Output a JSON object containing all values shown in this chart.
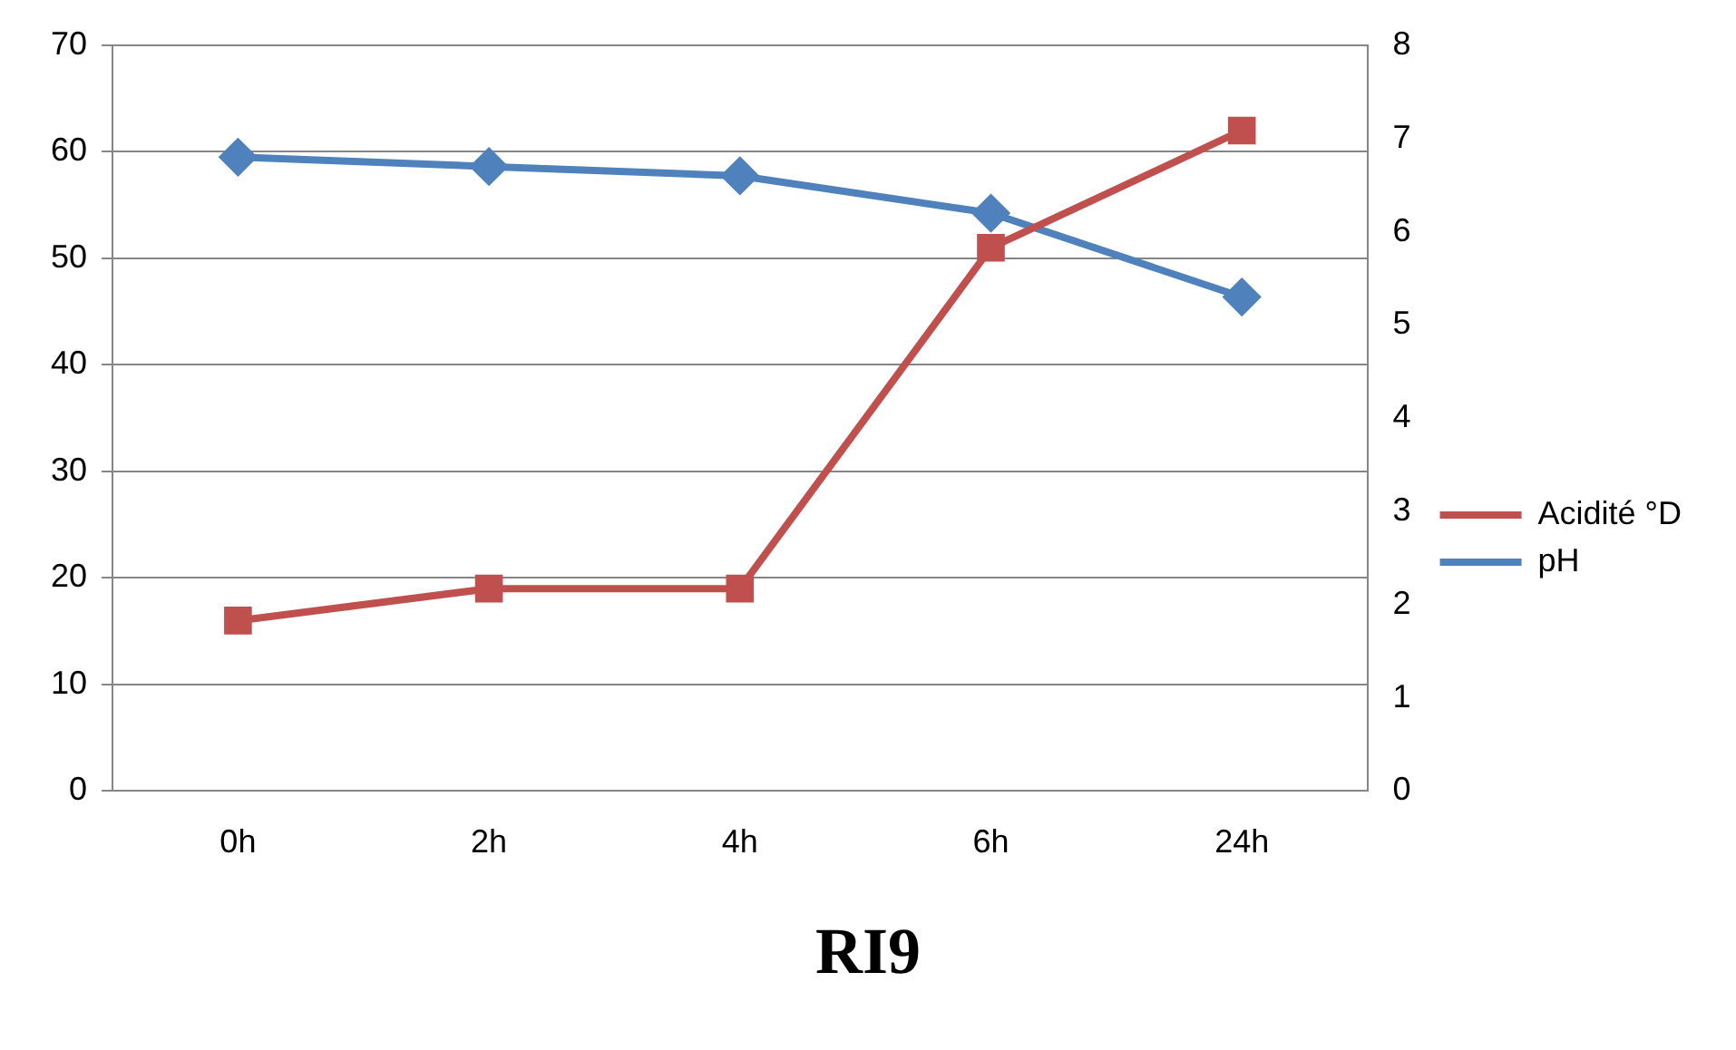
{
  "chart_data": {
    "type": "line",
    "title": "RI9",
    "categories": [
      "0h",
      "2h",
      "4h",
      "6h",
      "24h"
    ],
    "series": [
      {
        "name": "Acidité °D",
        "color": "#c0504d",
        "marker": "square",
        "values": [
          16,
          19,
          19,
          51,
          62
        ]
      },
      {
        "name": "pH",
        "color": "#4f81bd",
        "marker": "diamond",
        "axis": "y2",
        "values": [
          6.8,
          6.7,
          6.6,
          6.2,
          5.3
        ]
      }
    ],
    "ylim": [
      0,
      70
    ],
    "yticks": [
      0,
      10,
      20,
      30,
      40,
      50,
      60,
      70
    ],
    "y2lim": [
      0,
      8
    ],
    "y2ticks": [
      0,
      1,
      2,
      3,
      4,
      5,
      6,
      7,
      8
    ],
    "grid": "y",
    "legend": "right"
  }
}
